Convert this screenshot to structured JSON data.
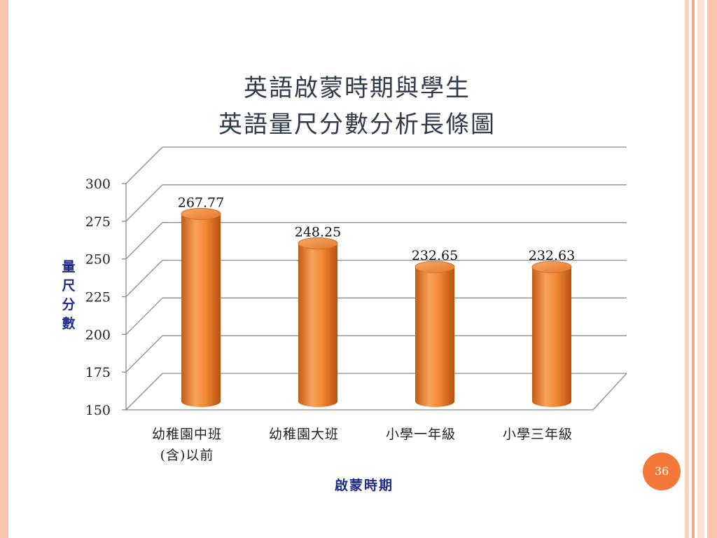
{
  "slide": {
    "title_line1": "英語啟蒙時期與學生",
    "title_line2": "英語量尺分數分析長條圖",
    "page_number": "36"
  },
  "chart_data": {
    "type": "bar",
    "categories": [
      "幼稚園中班(含)以前",
      "幼稚園大班",
      "小學一年級",
      "小學三年級"
    ],
    "category_lines": [
      [
        "幼稚園中班",
        "(含)以前"
      ],
      [
        "幼稚園大班"
      ],
      [
        "小學一年級"
      ],
      [
        "小學三年級"
      ]
    ],
    "values": [
      267.77,
      248.25,
      232.65,
      232.63
    ],
    "value_labels": [
      "267.77",
      "248.25",
      "232.65",
      "232.63"
    ],
    "ylim": [
      150,
      300
    ],
    "yticks": [
      150,
      175,
      200,
      225,
      250,
      275,
      300
    ],
    "ylabel": "量尺分數",
    "xlabel": "啟蒙時期",
    "grid": true,
    "style": "3d-cylinder",
    "bar_color": "#f0893a"
  }
}
